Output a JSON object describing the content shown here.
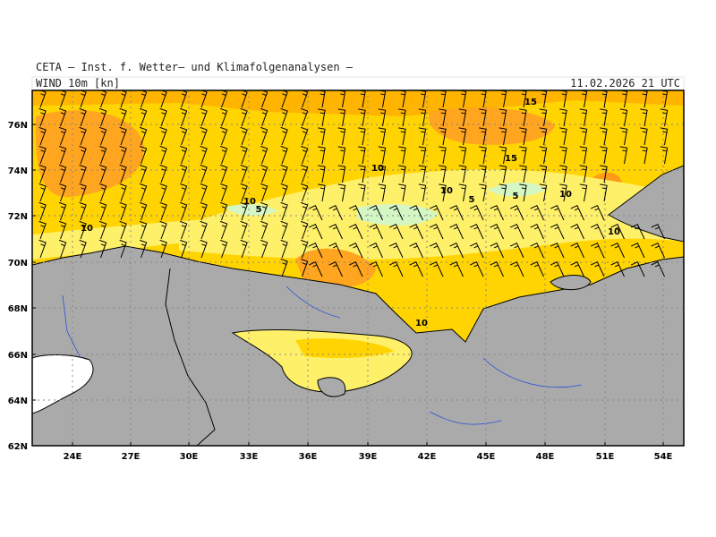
{
  "header": {
    "title": "CETA – Inst. f. Wetter– und Klimafolgenanalysen –",
    "field": "WIND 10m [kn]",
    "valid": "11.02.2026 21 UTC"
  },
  "lat_labels": [
    "76N",
    "74N",
    "72N",
    "70N",
    "68N",
    "66N",
    "64N",
    "62N"
  ],
  "lon_labels": [
    "24E",
    "27E",
    "30E",
    "33E",
    "36E",
    "39E",
    "42E",
    "45E",
    "48E",
    "51E",
    "54E"
  ],
  "contour_labels": [
    "15",
    "15",
    "10",
    "10",
    "5",
    "5",
    "10",
    "10",
    "5",
    "10",
    "10",
    "10"
  ]
}
